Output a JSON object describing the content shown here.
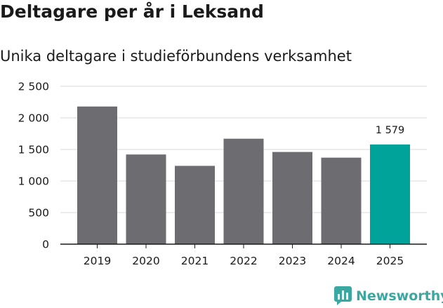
{
  "title": "Deltagare per år i Leksand",
  "subtitle": "Unika deltagare i studieförbundens verksamhet",
  "brand": {
    "name": "Newsworthy",
    "icon": "newsworthy-logo-icon",
    "color": "#3aa7a0"
  },
  "colors": {
    "bar": "#6d6c71",
    "highlight": "#00a39a",
    "grid": "#d9d9d9",
    "axis": "#1a1a1a"
  },
  "chart_data": {
    "type": "bar",
    "title": "Deltagare per år i Leksand",
    "subtitle": "Unika deltagare i studieförbundens verksamhet",
    "xlabel": "",
    "ylabel": "",
    "categories": [
      "2019",
      "2020",
      "2021",
      "2022",
      "2023",
      "2024",
      "2025"
    ],
    "values": [
      2180,
      1420,
      1240,
      1670,
      1460,
      1370,
      1579
    ],
    "highlight_index": 6,
    "highlight_label": "1 579",
    "ylim": [
      0,
      2500
    ],
    "yticks": [
      0,
      500,
      1000,
      1500,
      2000,
      2500
    ],
    "ytick_labels": [
      "0",
      "500",
      "1 000",
      "1 500",
      "2 000",
      "2 500"
    ],
    "grid": true
  }
}
